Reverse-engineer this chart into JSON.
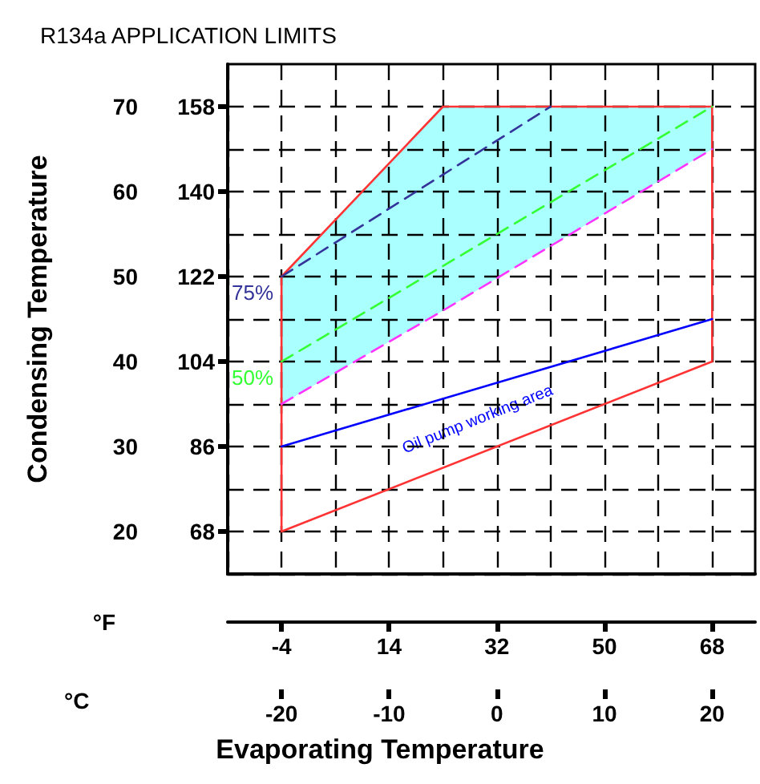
{
  "chart_data": {
    "type": "line",
    "title": "R134a APPLICATION LIMITS",
    "xlabel": "Evaporating Temperature",
    "ylabel": "Condensing Temperature",
    "x2label": "°F",
    "annotations": [
      "°C",
      "Oil pump working area"
    ],
    "xlim": [
      -25,
      24
    ],
    "xticks": [
      {
        "value": -25,
        "label": null
      },
      -20,
      {
        "value": -15,
        "label": null
      },
      -10,
      {
        "value": -5,
        "label": null
      },
      0,
      {
        "value": 5,
        "label": null
      },
      10,
      {
        "value": 15,
        "label": null
      },
      20
    ],
    "x2lim": [
      -13,
      75.2
    ],
    "x2ticks": [
      -4,
      14,
      32,
      50,
      68
    ],
    "ylim": [
      15,
      75
    ],
    "yticks": [
      {
        "value": 15,
        "label": null
      },
      20,
      {
        "value": 25,
        "label": null
      },
      30,
      {
        "value": 35,
        "label": null
      },
      40,
      {
        "value": 45,
        "label": null
      },
      50,
      {
        "value": 55,
        "label": null
      },
      60,
      {
        "value": 65,
        "label": null
      },
      70
    ],
    "y2lim": [
      59,
      167
    ],
    "y2ticks": [
      68,
      86,
      104,
      122,
      140,
      158
    ],
    "grid": true,
    "legend": false,
    "marker": "none",
    "series": [
      {
        "color": "#ff3333",
        "line_style": "solid",
        "x": [
          -20,
          -20,
          -5,
          20,
          20
        ],
        "values": [
          20,
          50,
          70,
          70,
          40
        ]
      },
      {
        "color": "#ff3333",
        "line_style": "solid",
        "x": [
          -20,
          20
        ],
        "values": [
          20,
          40
        ]
      },
      {
        "name": "75%",
        "color": "#333399",
        "line_style": "dashed",
        "x": [
          -20,
          -7.5,
          5
        ],
        "values": [
          50,
          60,
          70
        ]
      },
      {
        "name": "50%",
        "color": "#33ff33",
        "line_style": "dashed",
        "x": [
          -20,
          20
        ],
        "values": [
          40,
          70
        ]
      },
      {
        "color": "#ff33ff",
        "line_style": "dashed",
        "x": [
          -20,
          -5,
          20
        ],
        "values": [
          35,
          46,
          65
        ],
        "lower": [
          35,
          46,
          65
        ],
        "upper": [
          50,
          70,
          70
        ]
      },
      {
        "color": "#0000ff",
        "line_style": "solid",
        "x": [
          -20,
          20
        ],
        "values": [
          30,
          45
        ]
      }
    ]
  }
}
